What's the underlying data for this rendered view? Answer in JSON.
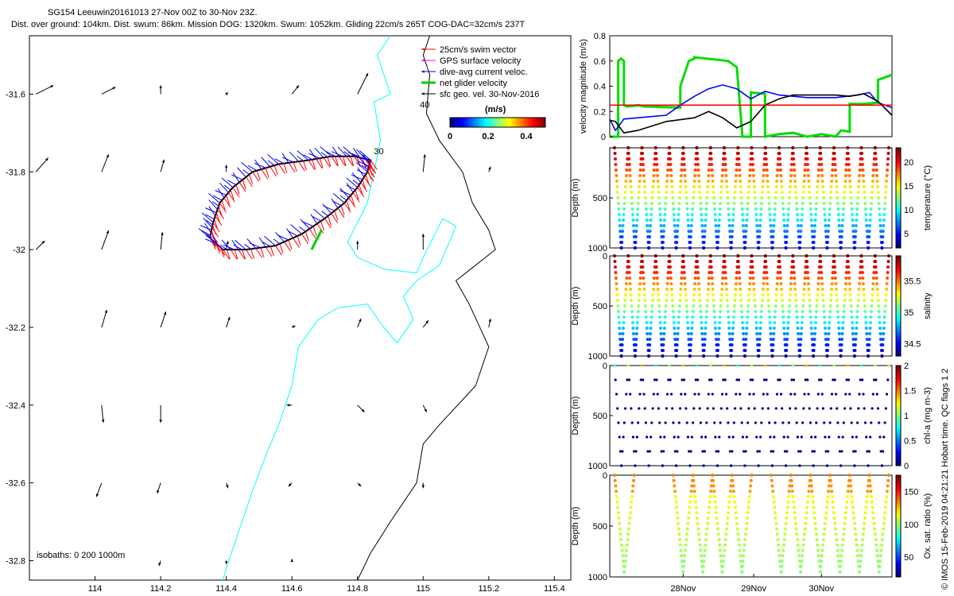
{
  "header": {
    "title_line1": "SG154 Leeuwin20161013 27-Nov 00Z to 30-Nov 23Z.",
    "title_line2": "Dist. over ground: 104km. Dist. swum: 86km. Mission DOG: 1320km. Swum: 1052km. Gliding 22cm/s 265T COG-DAC=32cm/s 237T"
  },
  "footer": {
    "credit": "© IMOS 15-Feb-2019 04:21:21 Hobart time. QC flags 1  2"
  },
  "colors": {
    "swim": "#ff0000",
    "gps": "#ff00ff",
    "dac": "#0000ff",
    "net": "#00cc00",
    "geo": "#000000",
    "coast": "#000000",
    "isobath": "#00ffff"
  },
  "chart_data": [
    {
      "type": "map",
      "name": "track-map",
      "xlabel": "",
      "ylabel": "",
      "xlim": [
        113.8,
        115.45
      ],
      "ylim": [
        -32.85,
        -31.45
      ],
      "xticks": [
        "114",
        "114.2",
        "114.4",
        "114.6",
        "114.8",
        "115",
        "115.2",
        "115.4"
      ],
      "yticks": [
        "-31.6",
        "-31.8",
        "-32",
        "-32.2",
        "-32.4",
        "-32.6",
        "-32.8"
      ],
      "legend": {
        "placement": "top-right",
        "entries": [
          "25cm/s swim vector",
          "GPS surface velocity",
          "dive-avg current veloc.",
          "net glider velocity",
          "sfc geo. vel. 30-Nov-2016"
        ]
      },
      "colorbar": {
        "label": "(m/s)",
        "ticks": [
          "0",
          "0.2",
          "0.4"
        ],
        "range": [
          0,
          0.5
        ]
      },
      "isobath_label": "isobaths: 0   200  1000m",
      "track_labels": [
        "30",
        "40"
      ],
      "glider_track": [
        [
          114.35,
          -31.97
        ],
        [
          114.36,
          -31.93
        ],
        [
          114.38,
          -31.88
        ],
        [
          114.42,
          -31.84
        ],
        [
          114.48,
          -31.8
        ],
        [
          114.56,
          -31.78
        ],
        [
          114.65,
          -31.77
        ],
        [
          114.72,
          -31.76
        ],
        [
          114.79,
          -31.76
        ],
        [
          114.84,
          -31.77
        ],
        [
          114.83,
          -31.8
        ],
        [
          114.8,
          -31.84
        ],
        [
          114.76,
          -31.88
        ],
        [
          114.7,
          -31.92
        ],
        [
          114.63,
          -31.96
        ],
        [
          114.55,
          -31.99
        ],
        [
          114.46,
          -32.0
        ],
        [
          114.39,
          -32.0
        ],
        [
          114.35,
          -31.97
        ]
      ],
      "geo_arrows": [
        {
          "lon": 113.82,
          "lat": -31.6,
          "u": 0.1,
          "v": 0.05
        },
        {
          "lon": 114.02,
          "lat": -31.6,
          "u": 0.08,
          "v": 0.04
        },
        {
          "lon": 114.2,
          "lat": -31.6,
          "u": 0.0,
          "v": 0.05
        },
        {
          "lon": 114.4,
          "lat": -31.6,
          "u": 0.01,
          "v": 0.01
        },
        {
          "lon": 114.6,
          "lat": -31.6,
          "u": 0.04,
          "v": 0.05
        },
        {
          "lon": 114.8,
          "lat": -31.6,
          "u": 0.06,
          "v": 0.12
        },
        {
          "lon": 113.82,
          "lat": -31.8,
          "u": 0.07,
          "v": 0.08
        },
        {
          "lon": 114.02,
          "lat": -31.8,
          "u": 0.04,
          "v": 0.1
        },
        {
          "lon": 114.2,
          "lat": -31.8,
          "u": 0.02,
          "v": 0.07
        },
        {
          "lon": 114.4,
          "lat": -31.8,
          "u": 0.0,
          "v": 0.04
        },
        {
          "lon": 115.0,
          "lat": -31.8,
          "u": 0.01,
          "v": 0.1
        },
        {
          "lon": 115.2,
          "lat": -31.8,
          "u": 0.01,
          "v": 0.03
        },
        {
          "lon": 113.82,
          "lat": -32.0,
          "u": 0.05,
          "v": 0.05
        },
        {
          "lon": 114.02,
          "lat": -32.0,
          "u": 0.04,
          "v": 0.11
        },
        {
          "lon": 114.2,
          "lat": -32.0,
          "u": 0.01,
          "v": 0.1
        },
        {
          "lon": 114.4,
          "lat": -32.0,
          "u": 0.01,
          "v": 0.05
        },
        {
          "lon": 114.8,
          "lat": -32.0,
          "u": 0.0,
          "v": 0.05
        },
        {
          "lon": 115.0,
          "lat": -32.0,
          "u": 0.0,
          "v": 0.09
        },
        {
          "lon": 114.02,
          "lat": -32.2,
          "u": 0.03,
          "v": 0.1
        },
        {
          "lon": 114.2,
          "lat": -32.2,
          "u": 0.03,
          "v": 0.09
        },
        {
          "lon": 114.4,
          "lat": -32.2,
          "u": 0.02,
          "v": 0.06
        },
        {
          "lon": 114.6,
          "lat": -32.2,
          "u": 0.02,
          "v": 0.01
        },
        {
          "lon": 114.8,
          "lat": -32.2,
          "u": 0.02,
          "v": 0.05
        },
        {
          "lon": 115.0,
          "lat": -32.2,
          "u": 0.03,
          "v": 0.04
        },
        {
          "lon": 115.2,
          "lat": -32.2,
          "u": 0.01,
          "v": 0.05
        },
        {
          "lon": 114.02,
          "lat": -32.4,
          "u": 0.01,
          "v": -0.1
        },
        {
          "lon": 114.2,
          "lat": -32.4,
          "u": 0.0,
          "v": -0.1
        },
        {
          "lon": 114.6,
          "lat": -32.4,
          "u": -0.03,
          "v": 0.0
        },
        {
          "lon": 114.8,
          "lat": -32.4,
          "u": 0.04,
          "v": -0.04
        },
        {
          "lon": 115.0,
          "lat": -32.4,
          "u": 0.02,
          "v": -0.04
        },
        {
          "lon": 114.02,
          "lat": -32.6,
          "u": -0.03,
          "v": -0.08
        },
        {
          "lon": 114.2,
          "lat": -32.6,
          "u": -0.02,
          "v": -0.06
        },
        {
          "lon": 114.4,
          "lat": -32.6,
          "u": 0.01,
          "v": -0.03
        },
        {
          "lon": 114.6,
          "lat": -32.6,
          "u": -0.02,
          "v": -0.02
        },
        {
          "lon": 114.8,
          "lat": -32.6,
          "u": 0.02,
          "v": -0.02
        },
        {
          "lon": 115.0,
          "lat": -32.6,
          "u": 0.0,
          "v": -0.03
        },
        {
          "lon": 114.2,
          "lat": -32.8,
          "u": -0.01,
          "v": -0.03
        },
        {
          "lon": 114.4,
          "lat": -32.8,
          "u": 0.0,
          "v": -0.02
        },
        {
          "lon": 114.6,
          "lat": -32.8,
          "u": 0.0,
          "v": 0.01
        }
      ]
    },
    {
      "type": "line",
      "name": "velocity-magnitude",
      "ylabel": "velocity magnitude (m/s)",
      "ylim": [
        0,
        0.8
      ],
      "yticks": [
        "0",
        "0.2",
        "0.4",
        "0.6",
        "0.8"
      ],
      "series": [
        {
          "name": "net glider velocity",
          "color": "#00dd00",
          "x": [
            0,
            0.03,
            0.03,
            0.04,
            0.05,
            0.05,
            0.06,
            0.07,
            0.1,
            0.12,
            0.25,
            0.25,
            0.28,
            0.3,
            0.3,
            0.42,
            0.45,
            0.47,
            0.5,
            0.5,
            0.55,
            0.55,
            0.6,
            0.65,
            0.7,
            0.75,
            0.8,
            0.82,
            0.85,
            0.85,
            0.9,
            0.95,
            0.95,
            1.0
          ],
          "y": [
            0.0,
            0.0,
            0.6,
            0.62,
            0.6,
            0.25,
            0.24,
            0.24,
            0.25,
            0.24,
            0.23,
            0.4,
            0.6,
            0.62,
            0.63,
            0.6,
            0.55,
            0.0,
            0.0,
            0.35,
            0.34,
            0.0,
            0.02,
            0.03,
            0.0,
            0.02,
            0.0,
            0.05,
            0.04,
            0.26,
            0.26,
            0.27,
            0.45,
            0.49
          ]
        },
        {
          "name": "dive-avg current",
          "color": "#0000ff",
          "x": [
            0,
            0.02,
            0.05,
            0.1,
            0.2,
            0.25,
            0.3,
            0.35,
            0.4,
            0.45,
            0.5,
            0.55,
            0.6,
            0.7,
            0.8,
            0.88,
            0.92,
            0.95,
            1.0
          ],
          "y": [
            0.14,
            0.05,
            0.14,
            0.15,
            0.17,
            0.25,
            0.32,
            0.38,
            0.41,
            0.38,
            0.3,
            0.36,
            0.33,
            0.31,
            0.31,
            0.33,
            0.35,
            0.27,
            0.23
          ]
        },
        {
          "name": "sfc geo vel",
          "color": "#000000",
          "x": [
            0,
            0.02,
            0.05,
            0.1,
            0.2,
            0.3,
            0.35,
            0.4,
            0.45,
            0.5,
            0.55,
            0.6,
            0.65,
            0.7,
            0.8,
            0.85,
            0.9,
            0.95,
            1.0
          ],
          "y": [
            0.13,
            0.12,
            0.03,
            0.05,
            0.12,
            0.15,
            0.2,
            0.15,
            0.07,
            0.12,
            0.25,
            0.3,
            0.33,
            0.33,
            0.33,
            0.32,
            0.34,
            0.28,
            0.17
          ]
        },
        {
          "name": "25cm/s reference",
          "color": "#ff0000",
          "x": [
            0,
            1
          ],
          "y": [
            0.25,
            0.25
          ]
        }
      ]
    },
    {
      "type": "scatter",
      "name": "temperature-profile",
      "ylabel": "Depth (m)",
      "ylim": [
        1000,
        0
      ],
      "yticks": [
        "500",
        "1000"
      ],
      "colorbar": {
        "label": "temperature (°C)",
        "ticks": [
          "5",
          "10",
          "15",
          "20"
        ],
        "range": [
          2,
          23
        ]
      },
      "dives": 20,
      "max_depth": 1000
    },
    {
      "type": "scatter",
      "name": "salinity-profile",
      "ylabel": "Depth (m)",
      "ylim": [
        1000,
        0
      ],
      "yticks": [
        "0",
        "500",
        "1000"
      ],
      "colorbar": {
        "label": "salinity",
        "ticks": [
          "34.5",
          "35",
          "35.5"
        ],
        "range": [
          34.3,
          35.9
        ]
      },
      "dives": 20,
      "max_depth": 1000
    },
    {
      "type": "scatter",
      "name": "chla-profile",
      "ylabel": "Depth (m)",
      "ylim": [
        1000,
        0
      ],
      "yticks": [
        "0",
        "500",
        "1000"
      ],
      "colorbar": {
        "label": "chl-a (mg m-3)",
        "ticks": [
          "0",
          "0.5",
          "1",
          "1.5",
          "2"
        ],
        "range": [
          0,
          2
        ]
      },
      "dives": 20,
      "max_depth": 1000
    },
    {
      "type": "scatter",
      "name": "oxygen-profile",
      "ylabel": "Depth (m)",
      "ylim": [
        1000,
        0
      ],
      "yticks": [
        "0",
        "500",
        "1000"
      ],
      "xticks": [
        "28Nov",
        "29Nov",
        "30Nov"
      ],
      "colorbar": {
        "label": "Ox. sat. ratio (%)",
        "ticks": [
          "50",
          "100",
          "150"
        ],
        "range": [
          20,
          175
        ]
      },
      "dives": 14,
      "max_depth": 1000
    }
  ]
}
